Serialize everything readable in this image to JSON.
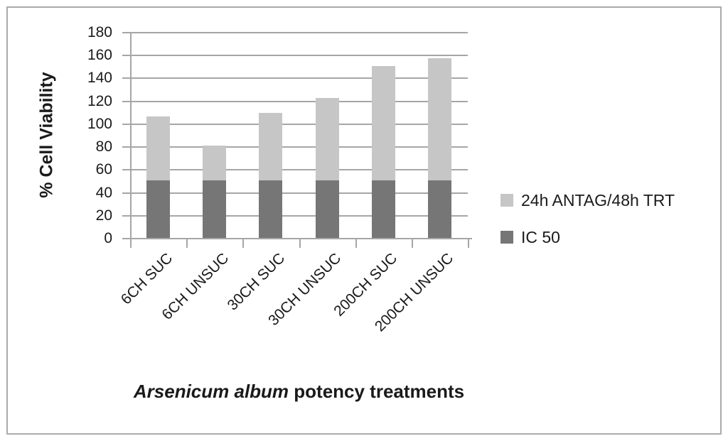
{
  "window": {
    "background": "#ffffff",
    "frame_border_color": "#ababab"
  },
  "chart_data": {
    "type": "bar",
    "stacked": true,
    "title": "",
    "categories": [
      "6CH SUC",
      "6CH UNSUC",
      "30CH SUC",
      "30CH UNSUC",
      "200CH SUC",
      "200CH UNSUC"
    ],
    "series": [
      {
        "name": "IC 50",
        "color": "#767676",
        "values": [
          50,
          50,
          50,
          50,
          50,
          50
        ]
      },
      {
        "name": "24h ANTAG/48h TRT",
        "color": "#c6c6c6",
        "values": [
          56,
          31,
          59,
          72,
          100,
          107
        ]
      }
    ],
    "stack_totals": [
      106,
      81,
      109,
      122,
      150,
      157
    ],
    "xlabel_italic": "Arsenicum album",
    "xlabel_rest": " potency treatments",
    "ylabel": "% Cell Viability",
    "ylim": [
      0,
      180
    ],
    "yticks": [
      0,
      20,
      40,
      60,
      80,
      100,
      120,
      140,
      160,
      180
    ],
    "grid": true,
    "gridline_color": "#a6a6a6",
    "axis_color": "#a6a6a6",
    "text_color": "#1a1a1a",
    "legend_position": "right",
    "legend": {
      "entries": [
        {
          "label": "24h ANTAG/48h TRT",
          "color": "#c6c6c6"
        },
        {
          "label": "IC 50",
          "color": "#767676"
        }
      ]
    }
  }
}
